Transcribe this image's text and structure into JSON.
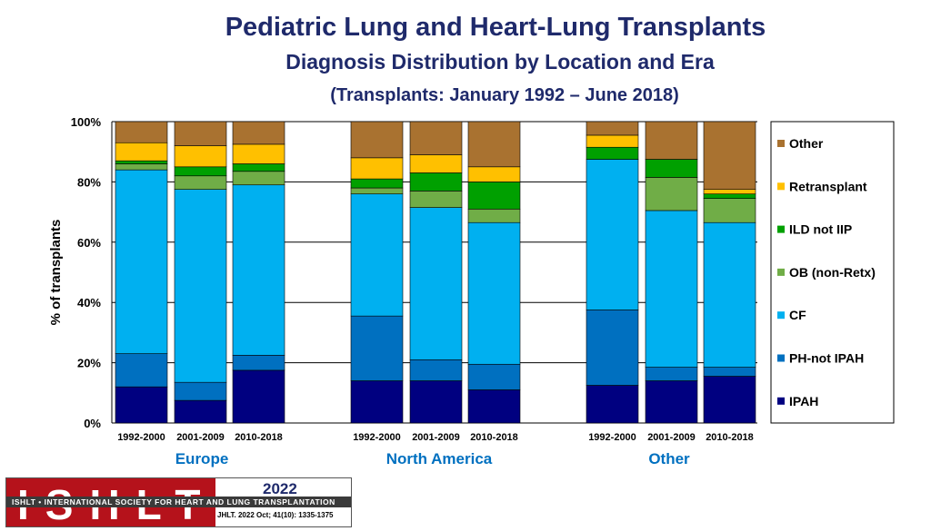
{
  "title": "Pediatric Lung and Heart-Lung Transplants",
  "subtitle": "Diagnosis Distribution by Location and Era",
  "subtitle2": "(Transplants: January 1992 – June 2018)",
  "colors": {
    "IPAH": "#000080",
    "PH-not IPAH": "#0070c0",
    "CF": "#00b0f0",
    "OB (non-Retx)": "#70ad47",
    "ILD not IIP": "#00a000",
    "Retransplant": "#ffc000",
    "Other": "#a97230",
    "group_label": "#0070c0"
  },
  "chart_data": {
    "type": "bar",
    "stacked": true,
    "ylabel": "% of transplants",
    "ylim": [
      0,
      100
    ],
    "yticks": [
      "0%",
      "20%",
      "40%",
      "60%",
      "80%",
      "100%"
    ],
    "grid": true,
    "legend_position": "right",
    "groups": [
      "Europe",
      "North America",
      "Other"
    ],
    "categories": [
      "1992-2000",
      "2001-2009",
      "2010-2018",
      "1992-2000",
      "2001-2009",
      "2010-2018",
      "1992-2000",
      "2001-2009",
      "2010-2018"
    ],
    "series": [
      {
        "name": "IPAH",
        "values": [
          12,
          7.5,
          17.5,
          14,
          14,
          11,
          12.5,
          14,
          15.5
        ]
      },
      {
        "name": "PH-not IPAH",
        "values": [
          11,
          6,
          5,
          21.5,
          7,
          8.5,
          25,
          4.5,
          3
        ]
      },
      {
        "name": "CF",
        "values": [
          61,
          64,
          56.5,
          40.5,
          50.5,
          47,
          50,
          52,
          48
        ]
      },
      {
        "name": "OB (non-Retx)",
        "values": [
          2,
          4.5,
          4.5,
          2,
          5.5,
          4.5,
          0,
          11,
          8
        ]
      },
      {
        "name": "ILD not IIP",
        "values": [
          1,
          3,
          2.5,
          3,
          6,
          9,
          4,
          6,
          1.5
        ]
      },
      {
        "name": "Retransplant",
        "values": [
          6,
          7,
          6.5,
          7,
          6,
          5,
          4,
          0,
          1.5
        ]
      },
      {
        "name": "Other",
        "values": [
          7,
          8,
          7.5,
          12,
          11,
          15,
          4.5,
          12.5,
          22.5
        ]
      }
    ]
  },
  "logo": {
    "text": "ISHLT",
    "band": "ISHLT • INTERNATIONAL SOCIETY FOR HEART AND LUNG TRANSPLANTATION",
    "year": "2022",
    "citation": "JHLT. 2022 Oct; 41(10): 1335-1375"
  }
}
